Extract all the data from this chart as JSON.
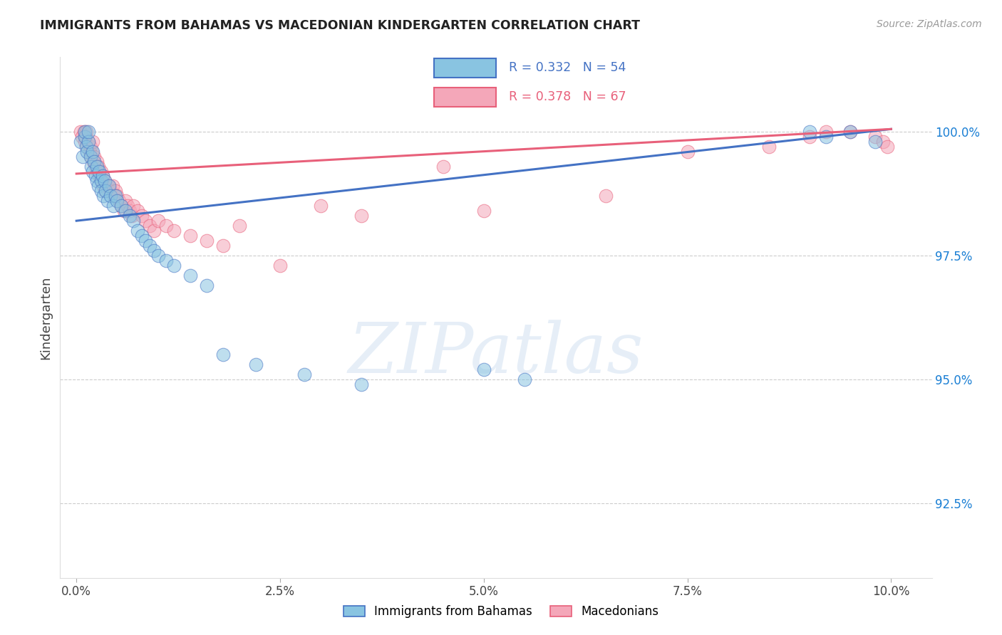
{
  "title": "IMMIGRANTS FROM BAHAMAS VS MACEDONIAN KINDERGARTEN CORRELATION CHART",
  "source": "Source: ZipAtlas.com",
  "ylabel": "Kindergarten",
  "ytick_vals": [
    92.5,
    95.0,
    97.5,
    100.0
  ],
  "ytick_labels": [
    "92.5%",
    "95.0%",
    "97.5%",
    "100.0%"
  ],
  "xtick_vals": [
    0.0,
    2.5,
    5.0,
    7.5,
    10.0
  ],
  "xtick_labels": [
    "0.0%",
    "2.5%",
    "5.0%",
    "7.5%",
    "10.0%"
  ],
  "xlim": [
    -0.2,
    10.5
  ],
  "ylim": [
    91.0,
    101.5
  ],
  "scatter_blue_color": "#89c4e1",
  "scatter_pink_color": "#f4a7b9",
  "line_blue_color": "#4472c4",
  "line_pink_color": "#e8607a",
  "background_color": "#ffffff",
  "watermark_text": "ZIPatlas",
  "blue_line_x0": 0.0,
  "blue_line_y0": 98.2,
  "blue_line_x1": 10.0,
  "blue_line_y1": 100.05,
  "pink_line_x0": 0.0,
  "pink_line_y0": 99.15,
  "pink_line_x1": 10.0,
  "pink_line_y1": 100.05,
  "legend_R_blue": "R = 0.332",
  "legend_N_blue": "N = 54",
  "legend_R_pink": "R = 0.378",
  "legend_N_pink": "N = 67",
  "blue_x": [
    0.05,
    0.08,
    0.1,
    0.1,
    0.12,
    0.13,
    0.15,
    0.15,
    0.17,
    0.18,
    0.2,
    0.2,
    0.22,
    0.23,
    0.25,
    0.25,
    0.27,
    0.28,
    0.3,
    0.3,
    0.32,
    0.33,
    0.35,
    0.36,
    0.38,
    0.4,
    0.42,
    0.45,
    0.48,
    0.5,
    0.55,
    0.6,
    0.65,
    0.7,
    0.75,
    0.8,
    0.85,
    0.9,
    0.95,
    1.0,
    1.1,
    1.2,
    1.4,
    1.6,
    1.8,
    2.2,
    2.8,
    3.5,
    5.0,
    5.5,
    9.0,
    9.2,
    9.5,
    9.8
  ],
  "blue_y": [
    99.8,
    99.5,
    99.9,
    100.0,
    99.7,
    99.6,
    99.8,
    100.0,
    99.5,
    99.3,
    99.6,
    99.2,
    99.4,
    99.1,
    99.3,
    99.0,
    98.9,
    99.2,
    99.0,
    98.8,
    99.1,
    98.7,
    99.0,
    98.8,
    98.6,
    98.9,
    98.7,
    98.5,
    98.7,
    98.6,
    98.5,
    98.4,
    98.3,
    98.2,
    98.0,
    97.9,
    97.8,
    97.7,
    97.6,
    97.5,
    97.4,
    97.3,
    97.1,
    96.9,
    95.5,
    95.3,
    95.1,
    94.9,
    95.2,
    95.0,
    100.0,
    99.9,
    100.0,
    99.8
  ],
  "pink_x": [
    0.05,
    0.07,
    0.09,
    0.1,
    0.11,
    0.12,
    0.13,
    0.15,
    0.16,
    0.17,
    0.18,
    0.19,
    0.2,
    0.21,
    0.22,
    0.23,
    0.25,
    0.26,
    0.27,
    0.28,
    0.3,
    0.31,
    0.32,
    0.33,
    0.35,
    0.36,
    0.38,
    0.4,
    0.42,
    0.44,
    0.46,
    0.48,
    0.5,
    0.52,
    0.55,
    0.58,
    0.6,
    0.63,
    0.65,
    0.68,
    0.7,
    0.75,
    0.8,
    0.85,
    0.9,
    0.95,
    1.0,
    1.1,
    1.2,
    1.4,
    1.6,
    1.8,
    2.0,
    2.5,
    3.0,
    3.5,
    5.0,
    6.5,
    8.5,
    9.0,
    9.2,
    9.5,
    9.8,
    9.9,
    9.95,
    4.5,
    7.5
  ],
  "pink_y": [
    100.0,
    99.9,
    100.0,
    99.8,
    99.9,
    100.0,
    99.7,
    99.8,
    99.6,
    99.7,
    99.5,
    99.6,
    99.8,
    99.4,
    99.5,
    99.3,
    99.4,
    99.2,
    99.3,
    99.1,
    99.2,
    99.0,
    99.1,
    98.9,
    99.0,
    98.8,
    98.9,
    98.9,
    98.8,
    98.9,
    98.7,
    98.8,
    98.7,
    98.6,
    98.5,
    98.4,
    98.6,
    98.5,
    98.4,
    98.3,
    98.5,
    98.4,
    98.3,
    98.2,
    98.1,
    98.0,
    98.2,
    98.1,
    98.0,
    97.9,
    97.8,
    97.7,
    98.1,
    97.3,
    98.5,
    98.3,
    98.4,
    98.7,
    99.7,
    99.9,
    100.0,
    100.0,
    99.9,
    99.8,
    99.7,
    99.3,
    99.6
  ]
}
